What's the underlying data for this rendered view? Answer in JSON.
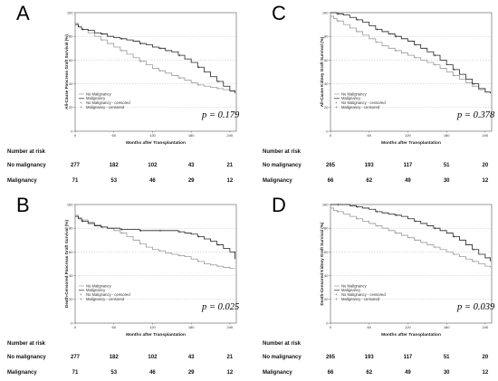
{
  "chart_data": [
    {
      "type": "line",
      "panel": "A",
      "ylabel": "All-Cause Pancreas Graft Survival (%)",
      "xlabel": "Months after Transplantation",
      "xticks": [
        "0",
        "60",
        "120",
        "180",
        "240"
      ],
      "yticks": [
        "0",
        "20",
        "40",
        "60",
        "80",
        "100"
      ],
      "xlim": [
        0,
        250
      ],
      "ylim": [
        0,
        100
      ],
      "legend": [
        "No Malignancy",
        "Malignancy",
        "No Malignancy - censored",
        "Malignancy - censored"
      ],
      "p_value": "p = 0.179",
      "series": [
        {
          "name": "No Malignancy",
          "color": "#9a9a9a",
          "x": [
            0,
            5,
            10,
            20,
            30,
            40,
            50,
            60,
            70,
            80,
            90,
            100,
            110,
            120,
            130,
            140,
            150,
            160,
            170,
            180,
            190,
            200,
            210,
            220,
            230,
            240,
            248
          ],
          "y": [
            91,
            88,
            86,
            83,
            80,
            77,
            74,
            71,
            68,
            65,
            62,
            59,
            56,
            53,
            51,
            49,
            47,
            45,
            43,
            41,
            39,
            38,
            37,
            36,
            35,
            34,
            33
          ]
        },
        {
          "name": "Malignancy",
          "color": "#222222",
          "x": [
            0,
            5,
            10,
            20,
            30,
            40,
            50,
            60,
            70,
            80,
            90,
            100,
            110,
            120,
            130,
            140,
            150,
            160,
            170,
            180,
            190,
            200,
            210,
            220,
            230,
            240,
            248
          ],
          "y": [
            90,
            88,
            86,
            85,
            83,
            82,
            80,
            79,
            78,
            77,
            76,
            74,
            73,
            71,
            70,
            68,
            67,
            64,
            61,
            58,
            54,
            50,
            46,
            42,
            38,
            34,
            32
          ]
        }
      ],
      "risk_table": {
        "title": "Number at risk",
        "rows": [
          {
            "label": "No malignancy",
            "values": [
              "277",
              "182",
              "102",
              "43",
              "21"
            ]
          },
          {
            "label": "Malignancy",
            "values": [
              "71",
              "53",
              "46",
              "29",
              "12"
            ]
          }
        ]
      }
    },
    {
      "type": "line",
      "panel": "C",
      "ylabel": "All-Cause Kidney Graft Survival (%)",
      "xlabel": "Months after Transplantation",
      "xticks": [
        "0",
        "60",
        "120",
        "180",
        "240"
      ],
      "yticks": [
        "0",
        "20",
        "40",
        "60",
        "80",
        "100"
      ],
      "xlim": [
        0,
        250
      ],
      "ylim": [
        0,
        100
      ],
      "legend": [
        "No Malignancy",
        "Malignancy",
        "No Malignancy - censored",
        "Malignancy - censored"
      ],
      "p_value": "p = 0.378",
      "series": [
        {
          "name": "No Malignancy",
          "color": "#9a9a9a",
          "x": [
            0,
            5,
            10,
            20,
            30,
            40,
            50,
            60,
            70,
            80,
            90,
            100,
            110,
            120,
            130,
            140,
            150,
            160,
            170,
            180,
            190,
            200,
            210,
            220,
            230,
            240,
            248
          ],
          "y": [
            97,
            95,
            93,
            90,
            87,
            84,
            81,
            78,
            75,
            72,
            70,
            68,
            66,
            64,
            62,
            60,
            58,
            56,
            53,
            50,
            47,
            44,
            41,
            38,
            35,
            33,
            32
          ]
        },
        {
          "name": "Malignancy",
          "color": "#222222",
          "x": [
            0,
            5,
            10,
            20,
            30,
            40,
            50,
            60,
            70,
            80,
            90,
            100,
            110,
            120,
            130,
            140,
            150,
            160,
            170,
            180,
            190,
            200,
            210,
            220,
            230,
            240,
            248
          ],
          "y": [
            100,
            100,
            99,
            98,
            96,
            94,
            92,
            89,
            86,
            84,
            82,
            80,
            78,
            76,
            73,
            70,
            67,
            64,
            60,
            56,
            52,
            48,
            44,
            40,
            36,
            33,
            32
          ]
        }
      ],
      "risk_table": {
        "title": "Number at risk",
        "rows": [
          {
            "label": "No malignancy",
            "values": [
              "265",
              "193",
              "117",
              "51",
              "20"
            ]
          },
          {
            "label": "Malignancy",
            "values": [
              "66",
              "62",
              "49",
              "30",
              "12"
            ]
          }
        ]
      }
    },
    {
      "type": "line",
      "panel": "B",
      "ylabel": "Death-Censored Pancreas Graft Survival (%)",
      "xlabel": "Months after Transplantation",
      "xticks": [
        "0",
        "60",
        "120",
        "180",
        "240"
      ],
      "yticks": [
        "0",
        "20",
        "40",
        "60",
        "80",
        "100"
      ],
      "xlim": [
        0,
        250
      ],
      "ylim": [
        0,
        100
      ],
      "legend": [
        "No Malignancy",
        "Malignancy",
        "No Malignancy - censored",
        "Malignancy - censored"
      ],
      "p_value": "p = 0.025",
      "series": [
        {
          "name": "No Malignancy",
          "color": "#9a9a9a",
          "x": [
            0,
            5,
            10,
            20,
            30,
            40,
            50,
            60,
            70,
            80,
            90,
            100,
            110,
            120,
            130,
            140,
            150,
            160,
            170,
            180,
            190,
            200,
            210,
            220,
            230,
            240,
            248
          ],
          "y": [
            91,
            89,
            87,
            85,
            83,
            81,
            80,
            78,
            76,
            73,
            70,
            67,
            64,
            62,
            61,
            59,
            58,
            57,
            56,
            54,
            52,
            50,
            49,
            48,
            47,
            46,
            46
          ]
        },
        {
          "name": "Malignancy",
          "color": "#222222",
          "x": [
            0,
            5,
            10,
            20,
            30,
            40,
            50,
            60,
            70,
            80,
            90,
            100,
            110,
            120,
            130,
            140,
            150,
            160,
            170,
            180,
            190,
            200,
            210,
            220,
            230,
            240,
            248
          ],
          "y": [
            90,
            88,
            86,
            84,
            82,
            81,
            80,
            80,
            79,
            79,
            79,
            78,
            78,
            78,
            78,
            78,
            78,
            77,
            76,
            75,
            73,
            71,
            69,
            66,
            63,
            60,
            54
          ]
        }
      ],
      "risk_table": {
        "title": "Number at risk",
        "rows": [
          {
            "label": "No malignancy",
            "values": [
              "277",
              "182",
              "102",
              "43",
              "21"
            ]
          },
          {
            "label": "Malignancy",
            "values": [
              "71",
              "53",
              "46",
              "29",
              "12"
            ]
          }
        ]
      }
    },
    {
      "type": "line",
      "panel": "D",
      "ylabel": "Death-Censored Kidney Graft Survival (%)",
      "xlabel": "Months after Transplantation",
      "xticks": [
        "0",
        "60",
        "120",
        "180",
        "240"
      ],
      "yticks": [
        "0",
        "20",
        "40",
        "60",
        "80",
        "100"
      ],
      "xlim": [
        0,
        250
      ],
      "ylim": [
        0,
        100
      ],
      "legend": [
        "No Malignancy",
        "Malignancy",
        "No Malignancy - censored",
        "Malignancy - censored"
      ],
      "p_value": "p = 0.039",
      "series": [
        {
          "name": "No Malignancy",
          "color": "#9a9a9a",
          "x": [
            0,
            5,
            10,
            20,
            30,
            40,
            50,
            60,
            70,
            80,
            90,
            100,
            110,
            120,
            130,
            140,
            150,
            160,
            170,
            180,
            190,
            200,
            210,
            220,
            230,
            240,
            248
          ],
          "y": [
            97,
            95,
            94,
            92,
            90,
            88,
            86,
            84,
            82,
            80,
            78,
            76,
            74,
            72,
            70,
            68,
            66,
            64,
            62,
            60,
            58,
            56,
            54,
            52,
            50,
            48,
            47
          ]
        },
        {
          "name": "Malignancy",
          "color": "#222222",
          "x": [
            0,
            5,
            10,
            20,
            30,
            40,
            50,
            60,
            70,
            80,
            90,
            100,
            110,
            120,
            130,
            140,
            150,
            160,
            170,
            180,
            190,
            200,
            210,
            220,
            230,
            240,
            248
          ],
          "y": [
            100,
            100,
            100,
            100,
            99,
            98,
            97,
            96,
            94,
            93,
            92,
            91,
            90,
            88,
            86,
            84,
            82,
            80,
            78,
            76,
            73,
            70,
            66,
            62,
            58,
            55,
            52
          ]
        }
      ],
      "risk_table": {
        "title": "Number at risk",
        "rows": [
          {
            "label": "No malignancy",
            "values": [
              "265",
              "193",
              "117",
              "51",
              "20"
            ]
          },
          {
            "label": "Malignancy",
            "values": [
              "66",
              "62",
              "49",
              "30",
              "12"
            ]
          }
        ]
      }
    }
  ]
}
